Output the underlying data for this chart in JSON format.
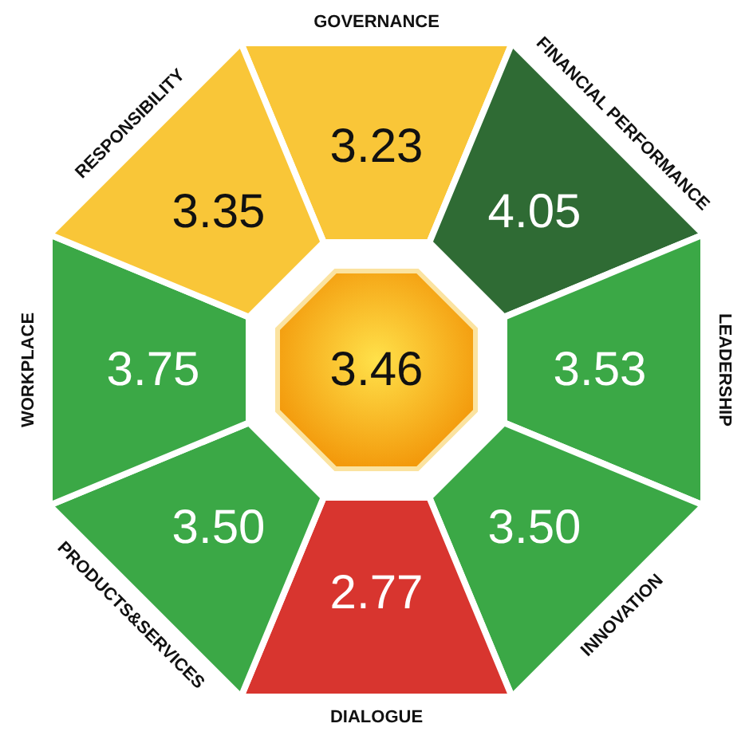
{
  "chart_data": {
    "type": "other",
    "categories": [
      "GOVERNANCE",
      "FINANCIAL PERFORMANCE",
      "LEADERSHIP",
      "INNOVATION",
      "DIALOGUE",
      "PRODUCTS&SERVICES",
      "WORKPLACE",
      "RESPONSIBILITY"
    ],
    "values": [
      3.23,
      4.05,
      3.53,
      3.5,
      2.77,
      3.5,
      3.75,
      3.35
    ],
    "value_labels": [
      "3.23",
      "4.05",
      "3.53",
      "3.50",
      "2.77",
      "3.50",
      "3.75",
      "3.35"
    ],
    "colors": [
      "#f9c638",
      "#2f6b34",
      "#3ba846",
      "#3ba846",
      "#d8352f",
      "#3ba846",
      "#3ba846",
      "#f9c638"
    ],
    "annotations": [
      "3.46"
    ]
  }
}
